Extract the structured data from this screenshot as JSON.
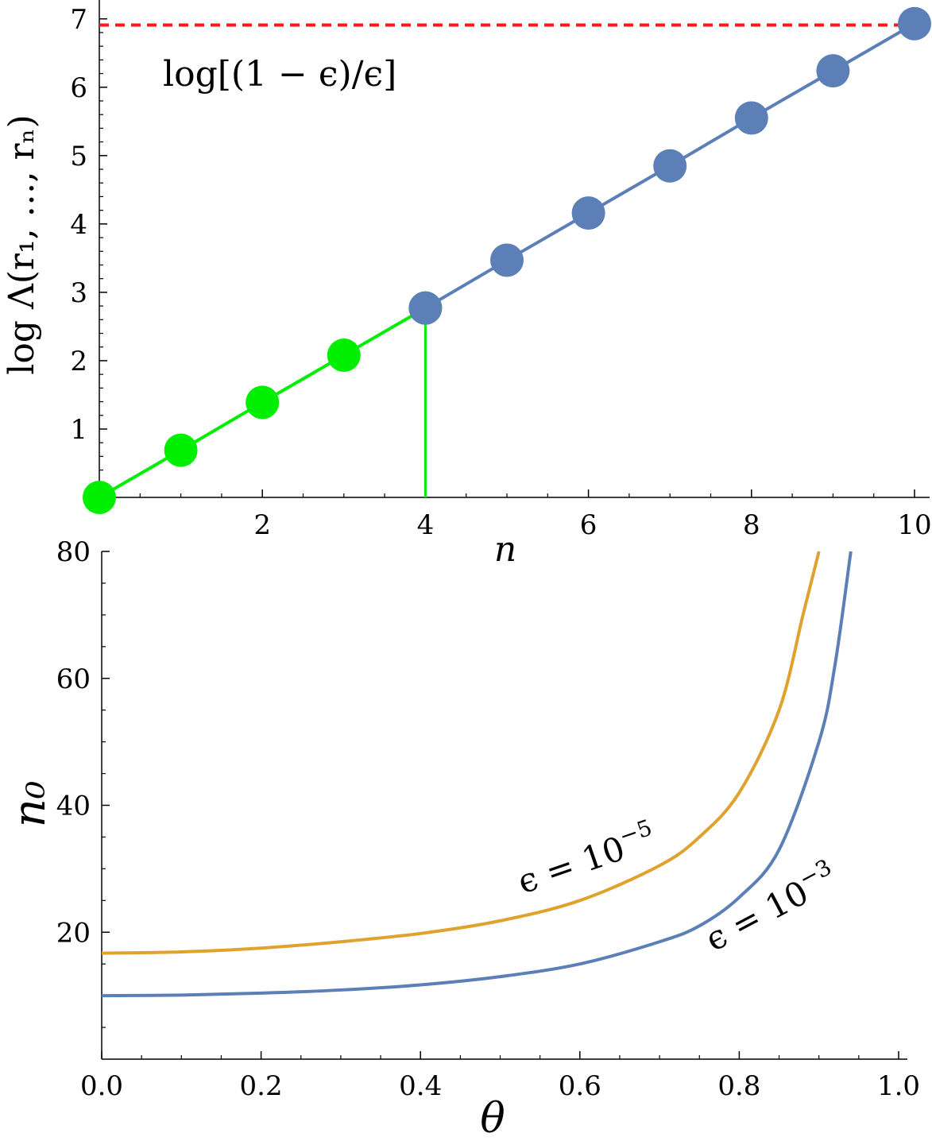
{
  "chart_data": [
    {
      "type": "line",
      "title": "",
      "xlabel": "n",
      "ylabel": "log Λ(r₁, …, rₙ)",
      "xlim": [
        0,
        10
      ],
      "ylim": [
        0,
        7.1
      ],
      "x_ticks": [
        2,
        4,
        6,
        8,
        10
      ],
      "x_tick_labels": [
        "2",
        "4",
        "6",
        "8",
        "10"
      ],
      "y_ticks": [
        1,
        2,
        3,
        4,
        5,
        6,
        7
      ],
      "y_tick_labels": [
        "1",
        "2",
        "3",
        "4",
        "5",
        "6",
        "7"
      ],
      "grid": false,
      "threshold": {
        "y": 6.91,
        "label": "log[(1 − ϵ)/ϵ]",
        "color": "#ff1a1a"
      },
      "stop_marker": {
        "x": 4,
        "color": "#00ee00"
      },
      "series": [
        {
          "x": [
            0,
            1,
            2,
            3,
            4
          ],
          "values": [
            0,
            0.69,
            1.39,
            2.08,
            2.77
          ],
          "color": "#00ee00"
        },
        {
          "x": [
            4,
            5,
            6,
            7,
            8,
            9,
            10
          ],
          "values": [
            2.77,
            3.47,
            4.16,
            4.85,
            5.55,
            6.24,
            6.93
          ],
          "color": "#5b7fb6"
        }
      ]
    },
    {
      "type": "line",
      "title": "",
      "xlabel": "θ",
      "ylabel": "n₀",
      "xlim": [
        0,
        1.02
      ],
      "ylim": [
        0,
        80
      ],
      "x_ticks": [
        0,
        0.2,
        0.4,
        0.6,
        0.8,
        1.0
      ],
      "x_tick_labels": [
        "0.0",
        "0.2",
        "0.4",
        "0.6",
        "0.8",
        "1.0"
      ],
      "y_ticks": [
        20,
        40,
        60,
        80
      ],
      "y_tick_labels": [
        "20",
        "40",
        "60",
        "80"
      ],
      "grid": false,
      "series": [
        {
          "name": "ϵ = 10⁻⁵",
          "label_base": "ϵ = 10",
          "label_exp": "−5",
          "color": "#e0a22e",
          "x": [
            0,
            0.1,
            0.2,
            0.3,
            0.4,
            0.5,
            0.6,
            0.7,
            0.75,
            0.8,
            0.85,
            0.88,
            0.9
          ],
          "values": [
            16.7,
            16.9,
            17.5,
            18.5,
            19.8,
            21.8,
            25.0,
            30.5,
            35.0,
            42.0,
            55.0,
            70.0,
            80.0
          ]
        },
        {
          "name": "ϵ = 10⁻³",
          "label_base": "ϵ = 10",
          "label_exp": "−3",
          "color": "#5b7fb6",
          "x": [
            0,
            0.1,
            0.2,
            0.3,
            0.4,
            0.5,
            0.6,
            0.7,
            0.75,
            0.8,
            0.85,
            0.9,
            0.92,
            0.94
          ],
          "values": [
            10.0,
            10.1,
            10.4,
            10.9,
            11.7,
            13.0,
            15.0,
            18.5,
            21.0,
            25.5,
            33.0,
            50.0,
            62.0,
            80.0
          ]
        }
      ]
    }
  ]
}
